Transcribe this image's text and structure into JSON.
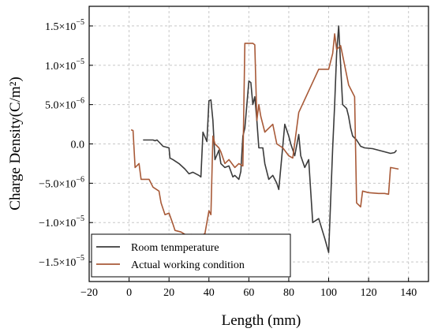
{
  "chart_data": {
    "type": "line",
    "xlabel": "Length (mm)",
    "ylabel": "Charge Density(C/m²)",
    "xlim": [
      -20,
      150
    ],
    "ylim": [
      -1.75e-05,
      1.75e-05
    ],
    "x_ticks": [
      {
        "value": -20,
        "label": "−20"
      },
      {
        "value": 0,
        "label": "0"
      },
      {
        "value": 20,
        "label": "20"
      },
      {
        "value": 40,
        "label": "40"
      },
      {
        "value": 60,
        "label": "60"
      },
      {
        "value": 80,
        "label": "80"
      },
      {
        "value": 100,
        "label": "100"
      },
      {
        "value": 120,
        "label": "120"
      },
      {
        "value": 140,
        "label": "140"
      }
    ],
    "y_ticks": [
      {
        "value": 1.5e-05,
        "label": "1.5×10",
        "exp": "−5"
      },
      {
        "value": 1e-05,
        "label": "1.0×10",
        "exp": "−5"
      },
      {
        "value": 5e-06,
        "label": "5.0×10",
        "exp": "−6"
      },
      {
        "value": 0,
        "label": "0.0",
        "exp": ""
      },
      {
        "value": -5e-06,
        "label": "−5.0×10",
        "exp": "−6"
      },
      {
        "value": -1e-05,
        "label": "−1.0×10",
        "exp": "−5"
      },
      {
        "value": -1.5e-05,
        "label": "−1.5×10",
        "exp": "−5"
      }
    ],
    "grid": true,
    "legend_position": "bottom-left",
    "series": [
      {
        "name": "Room tenmperature",
        "color": "#3b3b3b",
        "x": [
          7,
          12,
          13,
          14,
          17,
          20,
          20.5,
          22,
          25,
          28,
          30,
          32,
          35,
          36,
          37,
          39,
          40,
          41,
          42,
          43,
          45,
          46,
          48,
          50,
          52,
          53,
          55,
          56,
          57,
          58,
          60,
          61,
          62,
          63,
          64,
          65,
          67,
          68,
          70,
          72,
          74,
          75,
          78,
          80,
          81,
          83,
          85,
          86,
          88,
          90,
          92,
          95,
          98,
          100,
          102,
          103,
          104,
          105,
          106,
          107,
          109,
          110,
          111,
          112,
          114,
          116,
          118,
          122,
          125,
          128,
          131,
          133,
          134
        ],
        "y": [
          5e-07,
          5e-07,
          4e-07,
          5e-07,
          -3e-07,
          -5e-07,
          -1.8e-06,
          -2e-06,
          -2.5e-06,
          -3.2e-06,
          -3.8e-06,
          -3.6e-06,
          -4e-06,
          -4.2e-06,
          1.5e-06,
          3e-07,
          5.5e-06,
          5.6e-06,
          3e-06,
          -2e-06,
          -8e-07,
          -2.5e-06,
          -3e-06,
          -2.8e-06,
          -4.2e-06,
          -4e-06,
          -4.5e-06,
          -3.5e-06,
          1e-06,
          2e-06,
          8e-06,
          7.8e-06,
          5e-06,
          6e-06,
          3e-06,
          -5e-07,
          -5e-07,
          -2.5e-06,
          -4.5e-06,
          -4e-06,
          -5e-06,
          -5.8e-06,
          2.5e-06,
          1e-06,
          0.0,
          -1.5e-06,
          1.2e-06,
          -1.5e-06,
          -3e-06,
          -2e-06,
          -1e-05,
          -9.5e-06,
          -1.2e-05,
          -1.38e-05,
          -5e-07,
          5e-06,
          1.15e-05,
          1.5e-05,
          1e-05,
          5e-06,
          4.5e-06,
          3.5e-06,
          2e-06,
          1e-06,
          5e-07,
          -3e-07,
          -5e-07,
          -6e-07,
          -8e-07,
          -1e-06,
          -1.2e-06,
          -1.1e-06,
          -8e-07
        ]
      },
      {
        "name": "Actual working condition",
        "color": "#a85a38",
        "x": [
          1,
          2,
          3,
          5,
          6,
          10,
          12,
          15,
          16,
          18,
          20,
          22,
          23,
          26,
          28,
          30,
          31,
          35,
          38,
          40,
          41,
          42,
          43,
          45,
          46,
          48,
          50,
          53,
          55,
          57,
          58,
          60,
          62,
          63,
          64,
          65,
          66,
          68,
          70,
          72,
          74,
          77,
          80,
          82,
          85,
          95,
          98,
          100,
          102,
          103,
          104,
          106,
          108,
          110,
          112,
          113,
          114,
          116,
          117,
          120,
          125,
          128,
          130,
          131,
          135
        ],
        "y": [
          1.8e-06,
          1.7e-06,
          -3e-06,
          -2.5e-06,
          -4.5e-06,
          -4.5e-06,
          -5.5e-06,
          -6e-06,
          -7.5e-06,
          -9e-06,
          -8.8e-06,
          -1.02e-05,
          -1.1e-05,
          -1.12e-05,
          -1.15e-05,
          -1.16e-05,
          -1.15e-05,
          -1.18e-05,
          -1.14e-05,
          -8.5e-06,
          -9e-06,
          1e-06,
          0.0,
          -5e-07,
          -1e-06,
          -2.5e-06,
          -2e-06,
          -3e-06,
          -2.5e-06,
          -2.8e-06,
          1.28e-05,
          1.28e-05,
          1.28e-05,
          1.26e-05,
          3e-06,
          5e-06,
          3.5e-06,
          1.5e-06,
          2e-06,
          2.5e-06,
          0.0,
          -5e-07,
          -1.5e-06,
          -1.8e-06,
          4e-06,
          9.5e-06,
          9.5e-06,
          9.5e-06,
          1.15e-05,
          1.4e-05,
          1.2e-05,
          1.25e-05,
          1e-05,
          7.5e-06,
          6.5e-06,
          6e-06,
          -7.5e-06,
          -8e-06,
          -6e-06,
          -6.2e-06,
          -6.3e-06,
          -6.3e-06,
          -6.4e-06,
          -3e-06,
          -3.2e-06
        ]
      }
    ]
  }
}
